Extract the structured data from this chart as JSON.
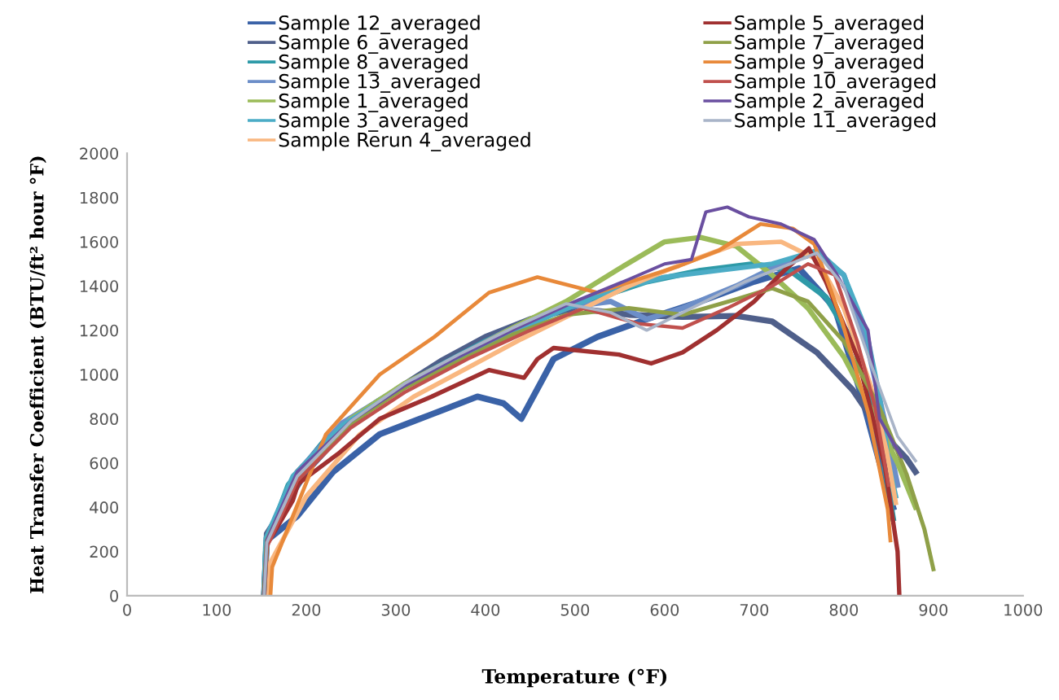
{
  "chart_data": {
    "type": "line",
    "xlabel": "Temperature (°F)",
    "ylabel": "Heat Transfer Coefficient (BTU/ft² hour °F)",
    "xlim": [
      0,
      1000
    ],
    "xticks": [
      0,
      100,
      200,
      300,
      400,
      500,
      600,
      700,
      800,
      900,
      1000
    ],
    "ylim": [
      0,
      2000
    ],
    "yticks": [
      0,
      200,
      400,
      600,
      800,
      1000,
      1200,
      1400,
      1600,
      1800,
      2000
    ],
    "grid": false,
    "legend": "top",
    "marker": "none",
    "line_style": "solid",
    "series": [
      {
        "name": "Sample 12_averaged",
        "color": "#3a62a7",
        "x": [
          153,
          156,
          190,
          230,
          282,
          340,
          391,
          420,
          440,
          476,
          525,
          580,
          640,
          700,
          750,
          790,
          820,
          840,
          855
        ],
        "values": [
          0,
          250,
          360,
          560,
          730,
          820,
          900,
          870,
          800,
          1070,
          1170,
          1250,
          1330,
          1420,
          1480,
          1300,
          900,
          600,
          400
        ]
      },
      {
        "name": "Sample 6_averaged",
        "color": "#4f5f8a",
        "x": [
          153,
          156,
          200,
          250,
          300,
          350,
          400,
          450,
          500,
          560,
          620,
          680,
          720,
          770,
          810,
          840,
          870,
          880
        ],
        "values": [
          0,
          280,
          560,
          780,
          930,
          1060,
          1170,
          1250,
          1300,
          1270,
          1260,
          1265,
          1240,
          1100,
          930,
          750,
          620,
          560
        ]
      },
      {
        "name": "Sample 8_averaged",
        "color": "#2e9aa8",
        "x": [
          153,
          155,
          180,
          220,
          280,
          340,
          400,
          460,
          520,
          580,
          640,
          700,
          740,
          780,
          810,
          830,
          845,
          855
        ],
        "values": [
          0,
          230,
          500,
          700,
          880,
          1020,
          1150,
          1260,
          1340,
          1420,
          1470,
          1500,
          1470,
          1350,
          1150,
          900,
          600,
          350
        ]
      },
      {
        "name": "Sample 13_averaged",
        "color": "#6c8ec8",
        "x": [
          153,
          156,
          190,
          240,
          300,
          360,
          420,
          480,
          540,
          580,
          620,
          680,
          730,
          770,
          800,
          825,
          845,
          860
        ],
        "values": [
          0,
          260,
          560,
          780,
          930,
          1060,
          1190,
          1300,
          1330,
          1250,
          1300,
          1400,
          1500,
          1550,
          1450,
          1150,
          800,
          500
        ]
      },
      {
        "name": "Sample 1_averaged",
        "color": "#9bbb59",
        "x": [
          153,
          156,
          190,
          250,
          310,
          370,
          430,
          490,
          550,
          600,
          640,
          680,
          720,
          760,
          800,
          830,
          860,
          880
        ],
        "values": [
          0,
          240,
          560,
          800,
          960,
          1080,
          1210,
          1330,
          1480,
          1600,
          1620,
          1580,
          1450,
          1300,
          1080,
          850,
          600,
          400
        ]
      },
      {
        "name": "Sample 3_averaged",
        "color": "#4bacc6",
        "x": [
          153,
          155,
          185,
          240,
          300,
          360,
          420,
          480,
          540,
          600,
          660,
          720,
          770,
          800,
          825,
          840,
          850,
          858
        ],
        "values": [
          0,
          260,
          540,
          770,
          920,
          1050,
          1170,
          1280,
          1380,
          1440,
          1470,
          1500,
          1560,
          1450,
          1200,
          900,
          600,
          450
        ]
      },
      {
        "name": "Sample Rerun 4_averaged",
        "color": "#f9b780",
        "x": [
          158,
          160,
          200,
          260,
          320,
          380,
          440,
          500,
          560,
          620,
          680,
          730,
          770,
          800,
          830,
          848,
          858
        ],
        "values": [
          0,
          150,
          450,
          730,
          900,
          1030,
          1160,
          1280,
          1400,
          1500,
          1590,
          1600,
          1520,
          1300,
          950,
          650,
          420
        ]
      },
      {
        "name": "Sample 5_averaged",
        "color": "#a03030",
        "x": [
          153,
          156,
          185,
          191,
          235,
          282,
          340,
          404,
          443,
          458,
          476,
          549,
          585,
          620,
          658,
          700,
          731,
          761,
          780,
          816,
          846,
          860,
          862
        ],
        "values": [
          0,
          230,
          430,
          507,
          640,
          800,
          900,
          1020,
          985,
          1070,
          1120,
          1090,
          1050,
          1100,
          1200,
          1330,
          1460,
          1570,
          1420,
          1070,
          580,
          200,
          0
        ]
      },
      {
        "name": "Sample 7_averaged",
        "color": "#8fa048",
        "x": [
          153,
          156,
          190,
          250,
          310,
          370,
          430,
          490,
          560,
          620,
          680,
          720,
          760,
          800,
          840,
          870,
          890,
          900
        ],
        "values": [
          0,
          250,
          540,
          780,
          940,
          1060,
          1180,
          1270,
          1300,
          1270,
          1340,
          1390,
          1330,
          1150,
          850,
          550,
          300,
          120
        ]
      },
      {
        "name": "Sample 9_averaged",
        "color": "#e8893a",
        "x": [
          160,
          162,
          222,
          282,
          343,
          404,
          458,
          525,
          570,
          616,
          660,
          707,
          743,
          767,
          798,
          827,
          849,
          852
        ],
        "values": [
          0,
          130,
          730,
          1000,
          1170,
          1370,
          1440,
          1370,
          1430,
          1490,
          1560,
          1680,
          1660,
          1590,
          1240,
          830,
          390,
          250
        ]
      },
      {
        "name": "Sample 10_averaged",
        "color": "#c0504d",
        "x": [
          153,
          156,
          190,
          250,
          310,
          380,
          450,
          510,
          570,
          620,
          670,
          720,
          760,
          790,
          815,
          835,
          850
        ],
        "values": [
          0,
          220,
          520,
          760,
          920,
          1070,
          1200,
          1300,
          1230,
          1210,
          1300,
          1400,
          1500,
          1450,
          1150,
          850,
          500
        ]
      },
      {
        "name": "Sample 2_averaged",
        "color": "#6a4fa0",
        "x": [
          153,
          156,
          190,
          250,
          310,
          370,
          430,
          500,
          560,
          600,
          630,
          646,
          670,
          694,
          730,
          767,
          791,
          827,
          840,
          864
        ],
        "values": [
          0,
          250,
          560,
          790,
          950,
          1080,
          1200,
          1330,
          1430,
          1500,
          1520,
          1735,
          1757,
          1713,
          1680,
          1610,
          1460,
          1200,
          800,
          630
        ]
      },
      {
        "name": "Sample 11_averaged",
        "color": "#a9b4c8",
        "x": [
          153,
          156,
          190,
          250,
          310,
          370,
          430,
          490,
          540,
          580,
          630,
          690,
          740,
          770,
          800,
          830,
          860,
          880
        ],
        "values": [
          0,
          240,
          540,
          790,
          960,
          1090,
          1210,
          1320,
          1280,
          1200,
          1300,
          1420,
          1500,
          1550,
          1400,
          1050,
          720,
          610
        ]
      }
    ]
  }
}
